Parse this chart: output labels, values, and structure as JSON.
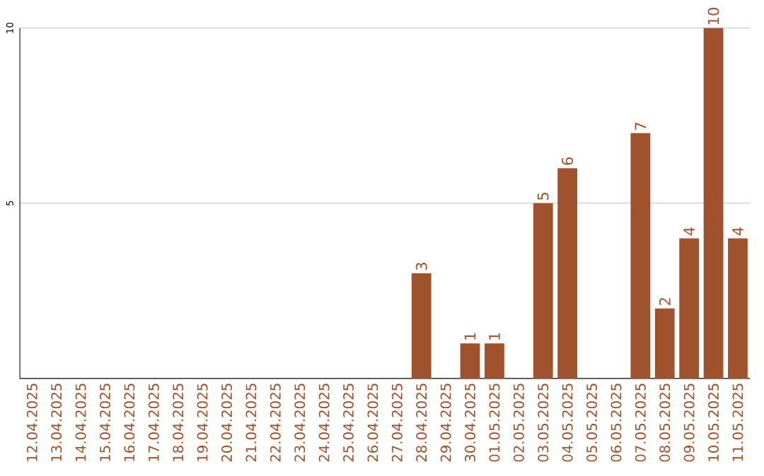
{
  "chart_data": {
    "type": "bar",
    "categories": [
      "12.04.2025",
      "13.04.2025",
      "14.04.2025",
      "15.04.2025",
      "16.04.2025",
      "17.04.2025",
      "18.04.2025",
      "19.04.2025",
      "20.04.2025",
      "21.04.2025",
      "22.04.2025",
      "23.04.2025",
      "24.04.2025",
      "25.04.2025",
      "26.04.2025",
      "27.04.2025",
      "28.04.2025",
      "29.04.2025",
      "30.04.2025",
      "01.05.2025",
      "02.05.2025",
      "03.05.2025",
      "04.05.2025",
      "05.05.2025",
      "06.05.2025",
      "07.05.2025",
      "08.05.2025",
      "09.05.2025",
      "10.05.2025",
      "11.05.2025"
    ],
    "values": [
      0,
      0,
      0,
      0,
      0,
      0,
      0,
      0,
      0,
      0,
      0,
      0,
      0,
      0,
      0,
      0,
      3,
      0,
      1,
      1,
      0,
      5,
      6,
      0,
      0,
      7,
      2,
      4,
      10,
      4
    ],
    "value_labels": [
      null,
      null,
      null,
      null,
      null,
      null,
      null,
      null,
      null,
      null,
      null,
      null,
      null,
      null,
      null,
      null,
      "3",
      null,
      "1",
      "1",
      null,
      "5",
      "6",
      null,
      null,
      "7",
      "2",
      "4",
      "10",
      "4"
    ],
    "color": "#a0522d",
    "ylim": [
      0,
      10
    ],
    "yticks": [
      5,
      10
    ],
    "grid": "y"
  }
}
